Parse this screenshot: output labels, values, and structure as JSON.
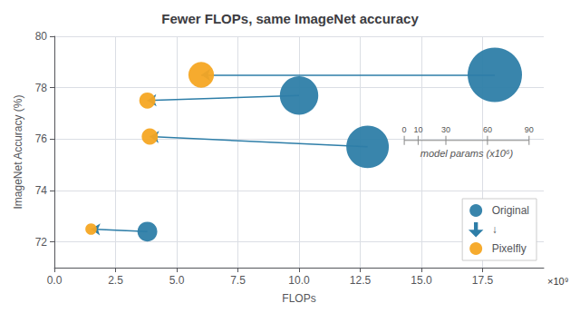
{
  "chart_data": {
    "type": "bubble",
    "title": "Fewer FLOPs, same ImageNet accuracy",
    "xlabel": "FLOPs",
    "ylabel": "ImageNet Accuracy (%)",
    "annotations": [
      "×10⁹"
    ],
    "xlim": [
      0,
      20000000000
    ],
    "xticks": [
      {
        "value": 0,
        "label": "0.0"
      },
      {
        "value": 2500000000,
        "label": "2.5"
      },
      {
        "value": 5000000000,
        "label": "5.0"
      },
      {
        "value": 7500000000,
        "label": "7.5"
      },
      {
        "value": 10000000000,
        "label": "10.0"
      },
      {
        "value": 12500000000,
        "label": "12.5"
      },
      {
        "value": 15000000000,
        "label": "15.0"
      },
      {
        "value": 17500000000,
        "label": "17.5"
      }
    ],
    "ylim": [
      71,
      80
    ],
    "yticks": [
      72,
      74,
      76,
      78,
      80
    ],
    "grid": true,
    "legend": "lower right",
    "series": [
      {
        "name": "Original",
        "type": "scatter",
        "color": "#2e7ea8",
        "x": [
          18000000000,
          10000000000,
          12800000000,
          3800000000
        ],
        "values": [
          78.5,
          77.7,
          75.7,
          72.4
        ],
        "sizes": [
          90,
          45,
          55,
          12
        ]
      },
      {
        "name": "↓",
        "type": "arrow",
        "color": "#2e7ea8"
      },
      {
        "name": "Pixelfly",
        "type": "scatter",
        "color": "#f5a623",
        "x": [
          6000000000,
          3800000000,
          3900000000,
          1500000000
        ],
        "values": [
          78.5,
          77.5,
          76.1,
          72.5
        ],
        "sizes": [
          20,
          8,
          8,
          4
        ]
      }
    ],
    "size_legend": {
      "values": [
        0,
        10,
        30,
        60,
        90
      ],
      "label": "model params (x10⁶)"
    }
  }
}
